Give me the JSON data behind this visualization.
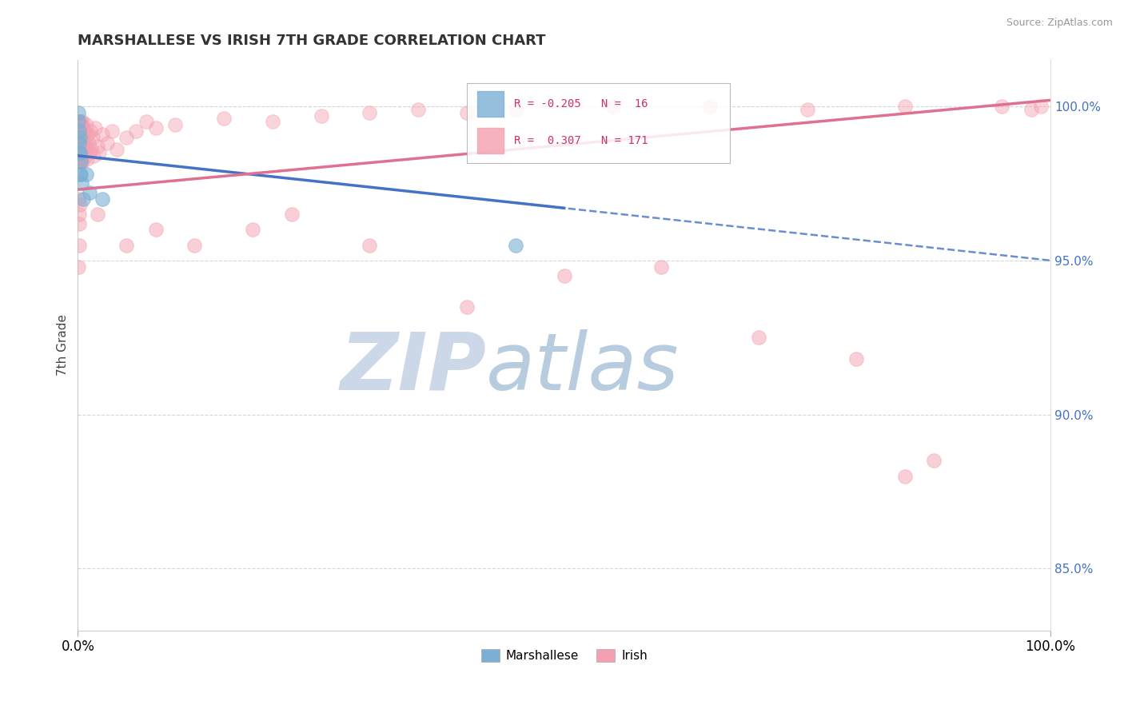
{
  "title": "MARSHALLESE VS IRISH 7TH GRADE CORRELATION CHART",
  "ylabel": "7th Grade",
  "source_text": "Source: ZipAtlas.com",
  "xlim": [
    0.0,
    100.0
  ],
  "ylim": [
    83.0,
    101.5
  ],
  "right_yticks": [
    85.0,
    90.0,
    95.0,
    100.0
  ],
  "marshallese_R": "-0.205",
  "marshallese_N": "16",
  "irish_R": "0.307",
  "irish_N": "171",
  "marshallese_color": "#7bafd4",
  "irish_color": "#f4a0b0",
  "background_color": "#ffffff",
  "grid_color": "#cccccc",
  "watermark_zip": "ZIP",
  "watermark_atlas": "atlas",
  "watermark_color_zip": "#d8e8f5",
  "watermark_color_atlas": "#c8d8e8",
  "marsh_x": [
    0.05,
    0.08,
    0.12,
    0.15,
    0.18,
    0.22,
    0.28,
    0.35,
    0.55,
    0.9,
    1.2,
    2.5,
    0.1,
    0.2,
    0.3,
    45.0
  ],
  "marsh_y": [
    99.8,
    99.5,
    99.2,
    98.8,
    99.0,
    97.8,
    98.2,
    97.5,
    97.0,
    97.8,
    97.2,
    97.0,
    98.5,
    98.5,
    97.8,
    95.5
  ],
  "irish_cluster_x": [
    0.04,
    0.05,
    0.05,
    0.06,
    0.06,
    0.07,
    0.07,
    0.08,
    0.08,
    0.09,
    0.09,
    0.1,
    0.1,
    0.11,
    0.11,
    0.12,
    0.12,
    0.13,
    0.13,
    0.14,
    0.14,
    0.15,
    0.15,
    0.16,
    0.16,
    0.17,
    0.17,
    0.18,
    0.18,
    0.19,
    0.19,
    0.2,
    0.2,
    0.21,
    0.21,
    0.22,
    0.22,
    0.23,
    0.23,
    0.24,
    0.24,
    0.25,
    0.25,
    0.26,
    0.26,
    0.27,
    0.27,
    0.28,
    0.28,
    0.29,
    0.29,
    0.3,
    0.3,
    0.31,
    0.31,
    0.32,
    0.33,
    0.34,
    0.35,
    0.36,
    0.38,
    0.4,
    0.42,
    0.45,
    0.48,
    0.5,
    0.52,
    0.55,
    0.58,
    0.6,
    0.65,
    0.7,
    0.75,
    0.8,
    0.85,
    0.9,
    0.95,
    1.0,
    1.1,
    1.2,
    1.3,
    1.4,
    1.5,
    1.6,
    1.8,
    2.0,
    2.2,
    2.5,
    3.0,
    3.5,
    4.0,
    5.0,
    6.0,
    7.0,
    8.0,
    10.0,
    15.0,
    20.0,
    25.0,
    30.0,
    35.0,
    40.0,
    45.0,
    55.0,
    65.0,
    75.0,
    85.0,
    95.0,
    98.0,
    99.0
  ],
  "irish_cluster_y": [
    99.2,
    99.5,
    98.8,
    99.3,
    98.5,
    99.1,
    98.2,
    99.4,
    98.6,
    99.0,
    98.3,
    99.2,
    98.7,
    99.5,
    98.4,
    99.1,
    98.8,
    99.3,
    98.5,
    99.4,
    98.2,
    99.0,
    98.6,
    99.3,
    98.4,
    99.1,
    98.7,
    99.5,
    98.3,
    99.2,
    98.6,
    99.0,
    98.8,
    99.4,
    98.2,
    99.1,
    98.5,
    99.3,
    98.4,
    99.2,
    98.7,
    99.0,
    98.6,
    99.4,
    98.3,
    99.1,
    98.8,
    99.5,
    98.2,
    99.0,
    98.6,
    99.3,
    98.7,
    99.1,
    98.4,
    99.2,
    98.8,
    99.0,
    98.6,
    99.4,
    98.3,
    99.1,
    98.7,
    99.5,
    98.2,
    99.0,
    98.6,
    99.3,
    98.4,
    99.1,
    98.8,
    99.2,
    98.5,
    99.0,
    98.7,
    99.4,
    98.3,
    99.1,
    98.8,
    98.5,
    99.2,
    98.6,
    99.0,
    98.4,
    99.3,
    98.7,
    98.5,
    99.1,
    98.8,
    99.2,
    98.6,
    99.0,
    99.2,
    99.5,
    99.3,
    99.4,
    99.6,
    99.5,
    99.7,
    99.8,
    99.9,
    99.8,
    99.9,
    100.0,
    100.0,
    99.9,
    100.0,
    100.0,
    99.9,
    100.0
  ],
  "irish_scatter_x": [
    0.08,
    0.12,
    0.15,
    0.2,
    0.1,
    0.08,
    2.0,
    5.0,
    8.0,
    12.0,
    18.0,
    22.0,
    30.0,
    40.0,
    50.0,
    60.0,
    70.0,
    80.0,
    85.0,
    88.0
  ],
  "irish_scatter_y": [
    97.0,
    96.5,
    96.2,
    96.8,
    95.5,
    94.8,
    96.5,
    95.5,
    96.0,
    95.5,
    96.0,
    96.5,
    95.5,
    93.5,
    94.5,
    94.8,
    92.5,
    91.8,
    88.0,
    88.5
  ],
  "marsh_line_x0": 0.0,
  "marsh_line_y0": 98.4,
  "marsh_line_x1": 100.0,
  "marsh_line_y1": 95.0,
  "marsh_dash_x0": 0.0,
  "marsh_dash_y0": 97.5,
  "marsh_dash_x1": 100.0,
  "marsh_dash_y1": 94.0,
  "irish_line_x0": 0.0,
  "irish_line_y0": 97.3,
  "irish_line_x1": 100.0,
  "irish_line_y1": 100.2
}
